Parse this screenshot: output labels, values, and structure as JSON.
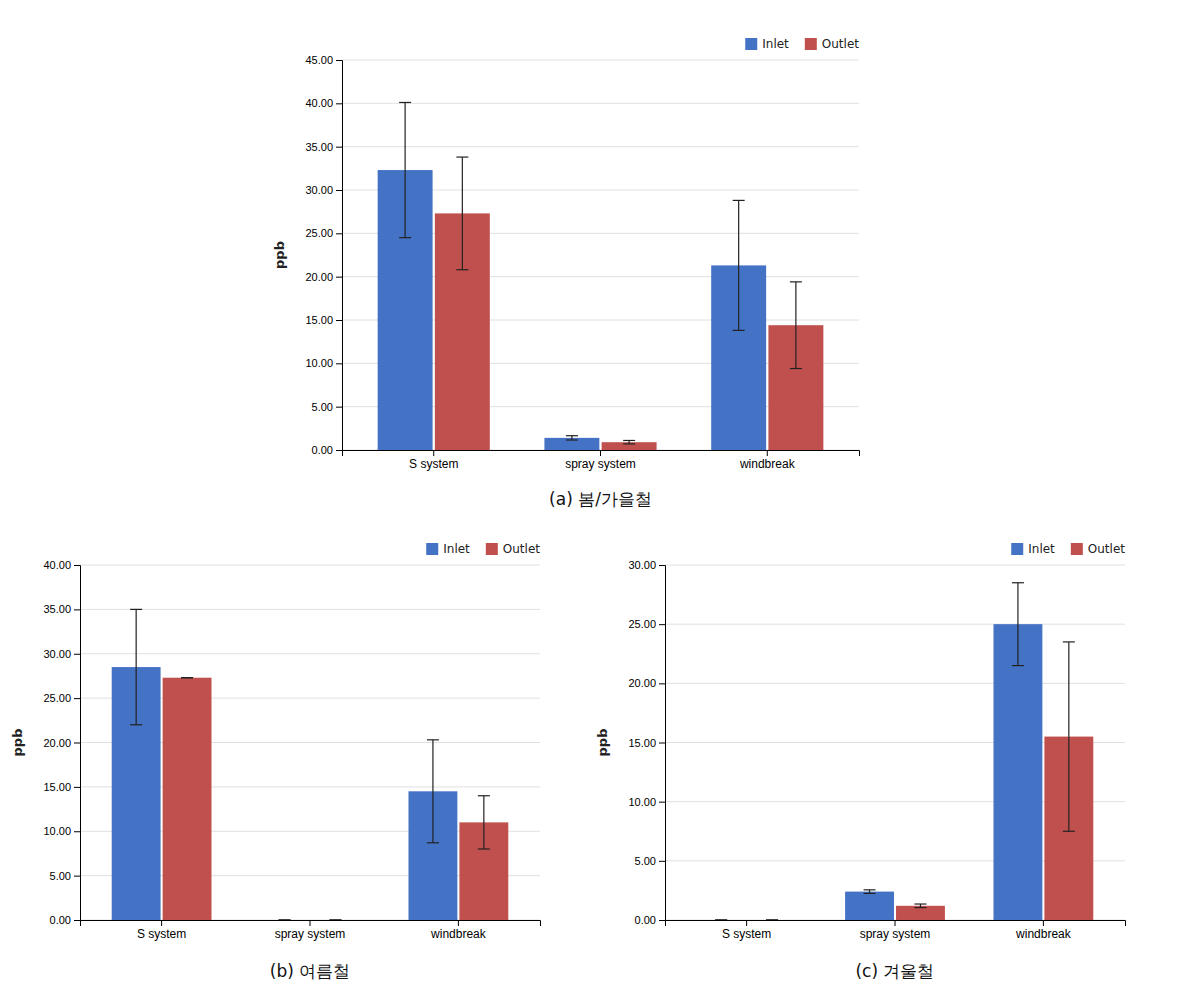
{
  "chart_data": [
    {
      "type": "bar",
      "title": "(a)  봄/가을철",
      "categories": [
        "S system",
        "spray system",
        "windbreak"
      ],
      "series": [
        {
          "name": "Inlet",
          "color": "#4472C4",
          "values": [
            32.3,
            1.4,
            21.3
          ],
          "errors": [
            7.8,
            0.25,
            7.5
          ]
        },
        {
          "name": "Outlet",
          "color": "#C0504D",
          "values": [
            27.3,
            0.9,
            14.4
          ],
          "errors": [
            6.5,
            0.2,
            5.0
          ]
        }
      ],
      "ylim": [
        0,
        45
      ],
      "yticks": [
        {
          "value": 0,
          "label": "0.00"
        },
        {
          "value": 5,
          "label": "5.00"
        },
        {
          "value": 10,
          "label": "10.00"
        },
        {
          "value": 15,
          "label": "15.00"
        },
        {
          "value": 20,
          "label": "20.00"
        },
        {
          "value": 25,
          "label": "25.00"
        },
        {
          "value": 30,
          "label": "30.00"
        },
        {
          "value": 35,
          "label": "35.00"
        },
        {
          "value": 40,
          "label": "40.00"
        },
        {
          "value": 45,
          "label": "45.00"
        }
      ],
      "ylabel": "ppb",
      "grid": true,
      "legend": "upper right"
    },
    {
      "type": "bar",
      "title": "(b)  여름철",
      "categories": [
        "S system",
        "spray system",
        "windbreak"
      ],
      "series": [
        {
          "name": "Inlet",
          "color": "#4472C4",
          "values": [
            28.5,
            0.0,
            14.5
          ],
          "errors": [
            6.5,
            0.0,
            5.8
          ]
        },
        {
          "name": "Outlet",
          "color": "#C0504D",
          "values": [
            27.3,
            0.0,
            11.0
          ],
          "errors": [
            0.0,
            0.0,
            3.0
          ]
        }
      ],
      "ylim": [
        0,
        40
      ],
      "yticks": [
        {
          "value": 0,
          "label": "0.00"
        },
        {
          "value": 5,
          "label": "5.00"
        },
        {
          "value": 10,
          "label": "10.00"
        },
        {
          "value": 15,
          "label": "15.00"
        },
        {
          "value": 20,
          "label": "20.00"
        },
        {
          "value": 25,
          "label": "25.00"
        },
        {
          "value": 30,
          "label": "30.00"
        },
        {
          "value": 35,
          "label": "35.00"
        },
        {
          "value": 40,
          "label": "40.00"
        }
      ],
      "ylabel": "ppb",
      "grid": true,
      "legend": "upper right"
    },
    {
      "type": "bar",
      "title": "(c)  겨울철",
      "categories": [
        "S system",
        "spray system",
        "windbreak"
      ],
      "series": [
        {
          "name": "Inlet",
          "color": "#4472C4",
          "values": [
            0.0,
            2.4,
            25.0
          ],
          "errors": [
            0.0,
            0.15,
            3.5
          ]
        },
        {
          "name": "Outlet",
          "color": "#C0504D",
          "values": [
            0.0,
            1.2,
            15.5
          ],
          "errors": [
            0.0,
            0.15,
            8.0
          ]
        }
      ],
      "ylim": [
        0,
        30
      ],
      "yticks": [
        {
          "value": 0,
          "label": "0.00"
        },
        {
          "value": 5,
          "label": "5.00"
        },
        {
          "value": 10,
          "label": "10.00"
        },
        {
          "value": 15,
          "label": "15.00"
        },
        {
          "value": 20,
          "label": "20.00"
        },
        {
          "value": 25,
          "label": "25.00"
        },
        {
          "value": 30,
          "label": "30.00"
        }
      ],
      "ylabel": "ppb",
      "grid": true,
      "legend": "upper right"
    }
  ]
}
